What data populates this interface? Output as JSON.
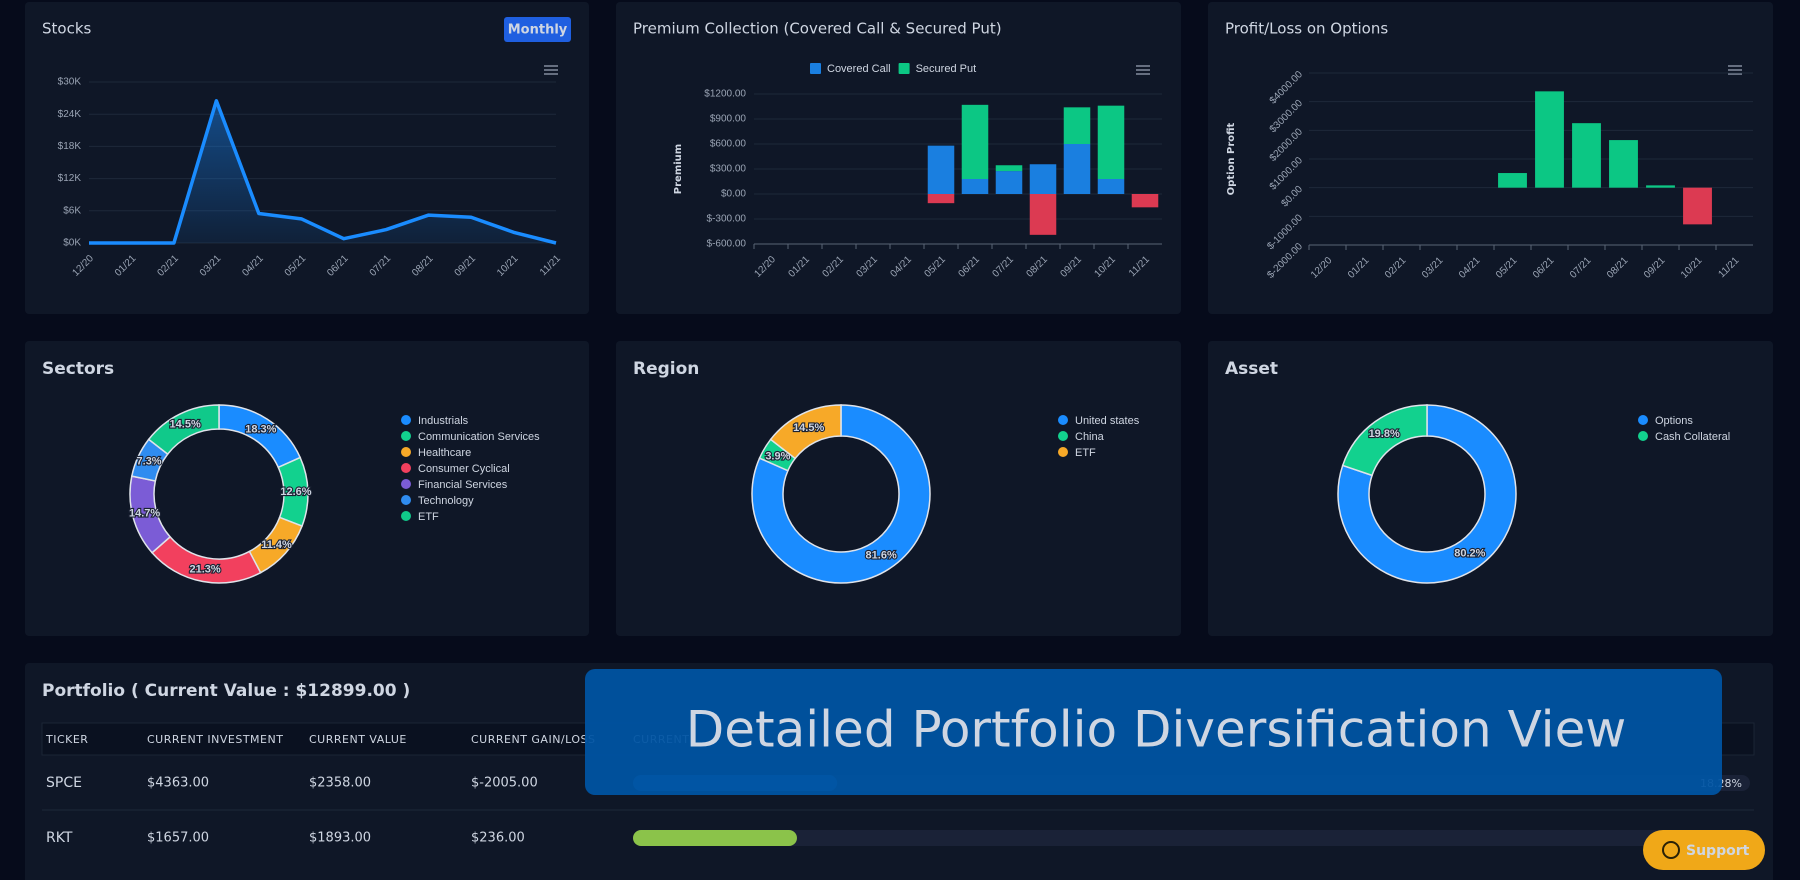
{
  "chart_data": [
    {
      "type": "line",
      "title": "Stocks",
      "button": "Monthly",
      "categories": [
        "12/20",
        "01/21",
        "02/21",
        "03/21",
        "04/21",
        "05/21",
        "06/21",
        "07/21",
        "08/21",
        "09/21",
        "10/21",
        "11/21"
      ],
      "values": [
        0,
        0,
        0,
        26500,
        5500,
        4500,
        800,
        2500,
        5200,
        4800,
        2000,
        0
      ],
      "color": "#1a8cff",
      "area": true,
      "grid": true,
      "ylim": [
        0,
        30000
      ],
      "yticks": [
        {
          "value": 0,
          "label": "$0K"
        },
        {
          "value": 6000,
          "label": "$6K"
        },
        {
          "value": 12000,
          "label": "$12K"
        },
        {
          "value": 18000,
          "label": "$18K"
        },
        {
          "value": 24000,
          "label": "$24K"
        },
        {
          "value": 30000,
          "label": "$30K"
        }
      ]
    },
    {
      "type": "bar",
      "stacked": true,
      "title": "Premium Collection (Covered Call & Secured Put)",
      "y_label": "Premium",
      "categories": [
        "12/20",
        "01/21",
        "02/21",
        "03/21",
        "04/21",
        "05/21",
        "06/21",
        "07/21",
        "08/21",
        "09/21",
        "10/21",
        "11/21"
      ],
      "series": [
        {
          "name": "Covered Call",
          "color": "#1a7fe0",
          "values": [
            0,
            0,
            0,
            0,
            0,
            580,
            180,
            275,
            357,
            600,
            180,
            0
          ]
        },
        {
          "name": "Secured Put",
          "color": "#0cc784",
          "values": [
            0,
            0,
            0,
            0,
            0,
            -110,
            890,
            70,
            -490,
            440,
            880,
            -160
          ]
        }
      ],
      "negative_color": "#dc3a52",
      "legend": "top",
      "grid": true,
      "ylim": [
        -600,
        1200
      ],
      "yticks": [
        {
          "value": -600,
          "label": "$-600.00"
        },
        {
          "value": -300,
          "label": "$-300.00"
        },
        {
          "value": 0,
          "label": "$0.00"
        },
        {
          "value": 300,
          "label": "$300.00"
        },
        {
          "value": 600,
          "label": "$600.00"
        },
        {
          "value": 900,
          "label": "$900.00"
        },
        {
          "value": 1200,
          "label": "$1200.00"
        }
      ]
    },
    {
      "type": "bar",
      "title": "Profit/Loss on Options",
      "y_label": "Option Profit",
      "categories": [
        "12/20",
        "01/21",
        "02/21",
        "03/21",
        "04/21",
        "05/21",
        "06/21",
        "07/21",
        "08/21",
        "09/21",
        "10/21",
        "11/21"
      ],
      "values": [
        0,
        0,
        0,
        0,
        0,
        510,
        3360,
        2250,
        1660,
        80,
        -1280,
        0
      ],
      "color": "#0cc784",
      "negative_color": "#dc3a52",
      "grid": true,
      "ylim": [
        -2000,
        4000
      ],
      "yticks": [
        {
          "value": -2000,
          "label": "$-2000.00"
        },
        {
          "value": -1000,
          "label": "$-1000.00"
        },
        {
          "value": 0,
          "label": "$0.00"
        },
        {
          "value": 1000,
          "label": "$1000.00"
        },
        {
          "value": 2000,
          "label": "$2000.00"
        },
        {
          "value": 3000,
          "label": "$3000.00"
        },
        {
          "value": 4000,
          "label": "$4000.00"
        }
      ]
    },
    {
      "type": "donut",
      "title": "Sectors",
      "categories": [
        "Industrials",
        "Communication Services",
        "Healthcare",
        "Consumer Cyclical",
        "Financial Services",
        "Technology",
        "ETF"
      ],
      "values": [
        18.3,
        12.6,
        11.4,
        21.3,
        14.7,
        7.3,
        14.5
      ],
      "value_labels": [
        "18.3%",
        "12.6%",
        "11.4%",
        "21.3%",
        "14.7%",
        "7.3%",
        "14.5%"
      ],
      "colors": [
        "#1a8cff",
        "#12d18e",
        "#f7a928",
        "#f2405e",
        "#7b5cd6",
        "#2f8cf0",
        "#10c98a"
      ]
    },
    {
      "type": "donut",
      "title": "Region",
      "categories": [
        "United states",
        "China",
        "ETF"
      ],
      "values": [
        81.6,
        3.9,
        14.5
      ],
      "value_labels": [
        "81.6%",
        "3.9%",
        "14.5%"
      ],
      "colors": [
        "#1a8cff",
        "#12d18e",
        "#f7a928"
      ]
    },
    {
      "type": "donut",
      "title": "Asset",
      "categories": [
        "Options",
        "Cash Collateral"
      ],
      "values": [
        80.2,
        19.8
      ],
      "value_labels": [
        "80.2%",
        "19.8%"
      ],
      "colors": [
        "#1a8cff",
        "#12d18e"
      ]
    }
  ],
  "portfolio": {
    "title": "Portfolio ( Current Value : $12899.00 )",
    "columns": [
      "TICKER",
      "CURRENT INVESTMENT",
      "CURRENT VALUE",
      "CURRENT GAIN/LOSS",
      "CURRENT"
    ],
    "rows": [
      {
        "cells": [
          "SPCE",
          "$4363.00",
          "$2358.00",
          "$-2005.00"
        ],
        "allocation": 18.28,
        "allocation_label": "18.28%",
        "color": "#1f6fb0"
      },
      {
        "cells": [
          "RKT",
          "$1657.00",
          "$1893.00",
          "$236.00"
        ],
        "allocation": 14.68,
        "color": "#8bc34a"
      }
    ]
  },
  "banner": "Detailed Portfolio Diversification View",
  "support": "Support"
}
